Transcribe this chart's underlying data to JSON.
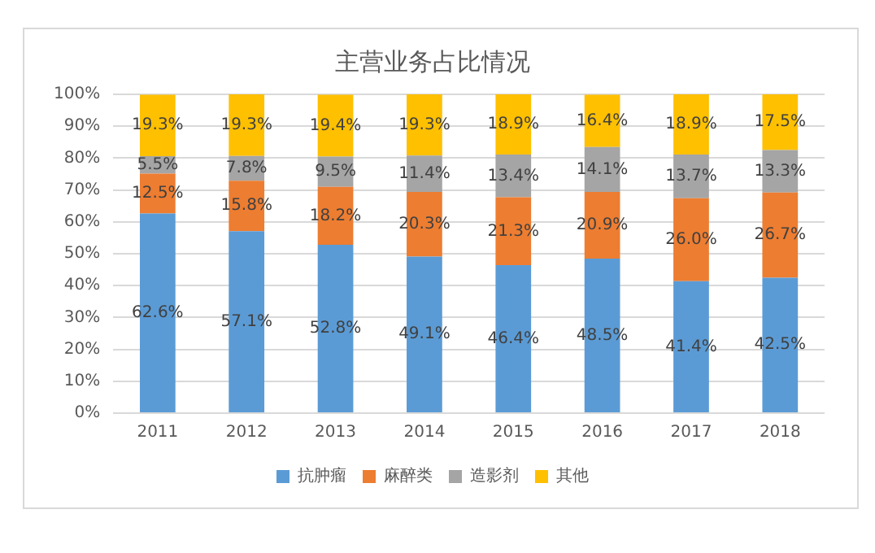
{
  "chart_data": {
    "type": "bar",
    "title": "主营业务占比情况",
    "categories": [
      "2011",
      "2012",
      "2013",
      "2014",
      "2015",
      "2016",
      "2017",
      "2018"
    ],
    "stacked": true,
    "ylim": [
      0,
      100
    ],
    "yticks": [
      {
        "value": 0,
        "label": "0%"
      },
      {
        "value": 10,
        "label": "10%"
      },
      {
        "value": 20,
        "label": "20%"
      },
      {
        "value": 30,
        "label": "30%"
      },
      {
        "value": 40,
        "label": "40%"
      },
      {
        "value": 50,
        "label": "50%"
      },
      {
        "value": 60,
        "label": "60%"
      },
      {
        "value": 70,
        "label": "70%"
      },
      {
        "value": 80,
        "label": "80%"
      },
      {
        "value": 90,
        "label": "90%"
      },
      {
        "value": 100,
        "label": "100%"
      }
    ],
    "grid": "y",
    "legend": "bottom",
    "series": [
      {
        "name": "抗肿瘤",
        "color": "#5b9bd5",
        "values": [
          62.6,
          57.1,
          52.8,
          49.1,
          46.4,
          48.5,
          41.4,
          42.5
        ],
        "value_labels": [
          "62.6%",
          "57.1%",
          "52.8%",
          "49.1%",
          "46.4%",
          "48.5%",
          "41.4%",
          "42.5%"
        ]
      },
      {
        "name": "麻醉类",
        "color": "#ed7d31",
        "values": [
          12.5,
          15.8,
          18.2,
          20.3,
          21.3,
          20.9,
          26.0,
          26.7
        ],
        "value_labels": [
          "12.5%",
          "15.8%",
          "18.2%",
          "20.3%",
          "21.3%",
          "20.9%",
          "26.0%",
          "26.7%"
        ]
      },
      {
        "name": "造影剂",
        "color": "#a5a5a5",
        "values": [
          5.5,
          7.8,
          9.5,
          11.4,
          13.4,
          14.1,
          13.7,
          13.3
        ],
        "value_labels": [
          "5.5%",
          "7.8%",
          "9.5%",
          "11.4%",
          "13.4%",
          "14.1%",
          "13.7%",
          "13.3%"
        ]
      },
      {
        "name": "其他",
        "color": "#ffc000",
        "values": [
          19.3,
          19.3,
          19.4,
          19.3,
          18.9,
          16.4,
          18.9,
          17.5
        ],
        "value_labels": [
          "19.3%",
          "19.3%",
          "19.4%",
          "19.3%",
          "18.9%",
          "16.4%",
          "18.9%",
          "17.5%"
        ]
      }
    ]
  }
}
